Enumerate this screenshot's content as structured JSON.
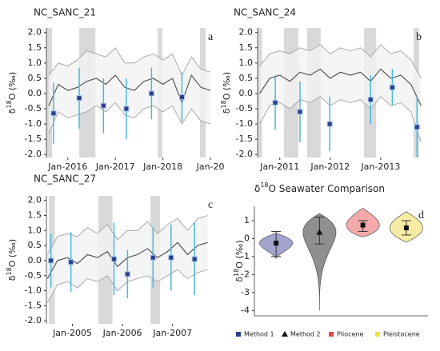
{
  "chart_data": [
    {
      "type": "timeseries",
      "title": "NC_SANC_21",
      "annotation": "a",
      "ylabel": {
        "prefix": "δ",
        "sup": "18",
        "suffix": "O (‰)"
      },
      "xlim": [
        2015.55,
        2019.15
      ],
      "ylim": [
        -2.1,
        2.15
      ],
      "xticks": [
        {
          "value": 2016,
          "label": "Jan-2016"
        },
        {
          "value": 2017,
          "label": "Jan-2017"
        },
        {
          "value": 2018,
          "label": "Jan-2018"
        },
        {
          "value": 2019,
          "label": "Jan-20"
        }
      ],
      "yticks": [
        {
          "value": 2,
          "label": "2.0"
        },
        1.5,
        {
          "value": 1,
          "label": "1.0"
        },
        0.5,
        {
          "value": 0,
          "label": "0.0"
        },
        -0.5,
        {
          "value": -1,
          "label": "-1.0"
        },
        -1.5,
        {
          "value": -2,
          "label": "-2.0"
        }
      ],
      "x": [
        2015.6,
        2015.8,
        2016.0,
        2016.2,
        2016.4,
        2016.6,
        2016.8,
        2017.0,
        2017.2,
        2017.4,
        2017.6,
        2017.8,
        2018.0,
        2018.2,
        2018.4,
        2018.6,
        2018.8,
        2019.0
      ],
      "mean_line": [
        -0.4,
        0.3,
        0.1,
        0.2,
        0.4,
        0.5,
        0.3,
        0.6,
        0.2,
        0.1,
        0.4,
        0.5,
        0.3,
        0.5,
        -0.3,
        0.6,
        0.2,
        0.1
      ],
      "band_upper": [
        0.6,
        1.0,
        0.9,
        1.1,
        1.4,
        1.3,
        1.2,
        1.5,
        1.0,
        1.0,
        1.2,
        1.3,
        1.1,
        1.3,
        0.6,
        1.2,
        0.8,
        0.7
      ],
      "band_lower": [
        -1.3,
        -0.6,
        -0.8,
        -0.7,
        -0.6,
        -0.4,
        -0.6,
        -0.3,
        -0.7,
        -0.8,
        -0.5,
        -0.4,
        -0.6,
        -0.4,
        -1.0,
        -0.5,
        -0.9,
        -1.0
      ],
      "shaded": [
        [
          2015.55,
          2015.67
        ],
        [
          2016.24,
          2016.58
        ],
        [
          2017.89,
          2017.99
        ],
        [
          2018.78,
          2018.9
        ]
      ],
      "points": {
        "x": [
          2015.7,
          2016.24,
          2016.75,
          2017.23,
          2017.76,
          2018.4
        ],
        "values": [
          -0.65,
          -0.15,
          -0.4,
          -0.5,
          0.0,
          -0.12
        ],
        "errors": [
          1.0,
          1.0,
          0.9,
          1.0,
          0.85,
          0.8
        ]
      },
      "colors": {
        "band": "#f2f2f2",
        "band_edge": "#9a9a9a",
        "line": "#4a4a4a",
        "shade": "#d9d9d9",
        "error": "#49b7e0",
        "point": "#2c3e8f"
      }
    },
    {
      "type": "timeseries",
      "title": "NC_SANC_24",
      "annotation": "b",
      "ylabel": {
        "prefix": "δ",
        "sup": "18",
        "suffix": "O (‰)"
      },
      "xlim": [
        2010.56,
        2013.89
      ],
      "ylim": [
        -2.1,
        2.15
      ],
      "xticks": [
        {
          "value": 2011,
          "label": "Jan-2011"
        },
        {
          "value": 2012,
          "label": "Jan-2012"
        },
        {
          "value": 2013,
          "label": "Jan-2013"
        }
      ],
      "yticks": [
        {
          "value": 2,
          "label": "2.0"
        },
        1.5,
        {
          "value": 1,
          "label": "1.0"
        },
        0.5,
        {
          "value": 0,
          "label": "0.0"
        },
        -0.5,
        {
          "value": -1,
          "label": "-1.0"
        },
        -1.5,
        {
          "value": -2,
          "label": "-2.0"
        }
      ],
      "x": [
        2010.6,
        2010.8,
        2011.0,
        2011.2,
        2011.4,
        2011.6,
        2011.8,
        2012.0,
        2012.2,
        2012.4,
        2012.6,
        2012.8,
        2013.0,
        2013.2,
        2013.4,
        2013.6,
        2013.8
      ],
      "mean_line": [
        0.0,
        0.5,
        0.6,
        0.4,
        0.7,
        0.6,
        0.8,
        0.5,
        0.7,
        0.6,
        0.7,
        0.4,
        0.8,
        0.5,
        0.6,
        0.3,
        -0.4
      ],
      "band_upper": [
        0.9,
        1.3,
        1.4,
        1.3,
        1.5,
        1.4,
        1.6,
        1.3,
        1.5,
        1.4,
        1.5,
        1.2,
        1.6,
        1.3,
        1.4,
        1.1,
        0.5
      ],
      "band_lower": [
        -1.0,
        -0.4,
        -0.3,
        -0.5,
        -0.2,
        -0.3,
        -0.1,
        -0.4,
        -0.2,
        -0.3,
        -0.2,
        -0.5,
        -0.1,
        -0.4,
        -0.3,
        -0.6,
        -1.6
      ],
      "shaded": [
        [
          2010.56,
          2010.65
        ],
        [
          2011.08,
          2011.37
        ],
        [
          2011.54,
          2011.81
        ],
        [
          2012.67,
          2012.91
        ],
        [
          2013.65,
          2013.76
        ]
      ],
      "points": {
        "x": [
          2010.91,
          2011.4,
          2011.99,
          2012.8,
          2013.23,
          2013.72
        ],
        "values": [
          -0.3,
          -0.6,
          -1.0,
          -0.2,
          0.2,
          -1.1
        ],
        "errors": [
          0.9,
          1.0,
          0.9,
          0.8,
          0.6,
          1.0
        ]
      },
      "colors": {
        "band": "#f2f2f2",
        "band_edge": "#9a9a9a",
        "line": "#4a4a4a",
        "shade": "#d9d9d9",
        "error": "#49b7e0",
        "point": "#2c3e8f"
      }
    },
    {
      "type": "timeseries",
      "title": "NC_SANC_27",
      "annotation": "c",
      "ylabel": {
        "prefix": "δ",
        "sup": "18",
        "suffix": "O (‰)"
      },
      "xlim": [
        2004.48,
        2007.9
      ],
      "ylim": [
        -2.1,
        2.15
      ],
      "xticks": [
        {
          "value": 2005,
          "label": "Jan-2005"
        },
        {
          "value": 2006,
          "label": "Jan-2006"
        },
        {
          "value": 2007,
          "label": "Jan-2007"
        }
      ],
      "yticks": [
        {
          "value": 2,
          "label": "2.0"
        },
        1.5,
        {
          "value": 1,
          "label": "1.0"
        },
        0.5,
        {
          "value": 0,
          "label": "0.0"
        },
        -0.5,
        {
          "value": -1,
          "label": "-1.0"
        },
        -1.5,
        {
          "value": -2,
          "label": "-2.0"
        }
      ],
      "x": [
        2004.5,
        2004.7,
        2004.9,
        2005.1,
        2005.3,
        2005.5,
        2005.7,
        2005.9,
        2006.1,
        2006.3,
        2006.5,
        2006.7,
        2006.9,
        2007.1,
        2007.3,
        2007.5,
        2007.7
      ],
      "mean_line": [
        -0.6,
        0.0,
        0.1,
        -0.1,
        0.2,
        0.1,
        0.3,
        -0.2,
        0.1,
        0.2,
        0.4,
        0.1,
        0.3,
        0.6,
        0.2,
        0.5,
        0.6
      ],
      "band_upper": [
        0.2,
        0.8,
        0.9,
        0.8,
        1.1,
        0.9,
        1.2,
        0.7,
        1.0,
        1.0,
        1.3,
        0.9,
        1.2,
        1.4,
        1.0,
        1.4,
        1.5
      ],
      "band_lower": [
        -1.4,
        -0.8,
        -0.7,
        -0.9,
        -0.6,
        -0.7,
        -0.5,
        -1.0,
        -0.7,
        -0.6,
        -0.5,
        -0.7,
        -0.5,
        -0.3,
        -0.6,
        -0.4,
        -0.3
      ],
      "shaded": [
        [
          2004.53,
          2004.65
        ],
        [
          2005.52,
          2005.8
        ],
        [
          2006.56,
          2006.75
        ]
      ],
      "points": {
        "x": [
          2004.57,
          2004.97,
          2005.83,
          2006.1,
          2006.61,
          2006.97,
          2007.44
        ],
        "values": [
          0.0,
          -0.05,
          0.05,
          -0.45,
          0.1,
          0.1,
          0.05
        ],
        "errors": [
          0.9,
          1.0,
          1.2,
          0.8,
          1.0,
          1.1,
          1.2
        ]
      },
      "colors": {
        "band": "#f2f2f2",
        "band_edge": "#9a9a9a",
        "line": "#4a4a4a",
        "shade": "#d9d9d9",
        "error": "#49b7e0",
        "point": "#2c3e8f"
      }
    },
    {
      "type": "violin",
      "title": {
        "prefix": "δ",
        "sup": "18",
        "suffix": "O Seawater Comparison"
      },
      "annotation": "d",
      "ylabel": {
        "prefix": "δ",
        "sup": "18",
        "suffix": "O (‰)"
      },
      "ylim": [
        -4.3,
        1.8
      ],
      "yticks": [
        1,
        0,
        -1,
        -2,
        -3,
        -4
      ],
      "categories": [
        "Method 1",
        "Method 2",
        "Pliocene",
        "Pleistocene"
      ],
      "colors": [
        "#a3a5cf",
        "#8f8f8f",
        "#f4a9ab",
        "#f7eca3"
      ],
      "legend_colors": [
        "#2c3e8f",
        "#111111",
        "#e0474c",
        "#f2e04a"
      ],
      "markers": [
        "square",
        "triangle",
        "square",
        "square"
      ],
      "min": [
        -1.1,
        -4.0,
        0.1,
        -0.2
      ],
      "max": [
        0.3,
        1.4,
        1.7,
        1.5
      ],
      "mean": [
        -0.25,
        0.35,
        0.75,
        0.6
      ],
      "error_low": [
        -1.0,
        -0.3,
        0.4,
        0.2
      ],
      "error_high": [
        0.4,
        1.2,
        1.0,
        1.0
      ]
    }
  ]
}
